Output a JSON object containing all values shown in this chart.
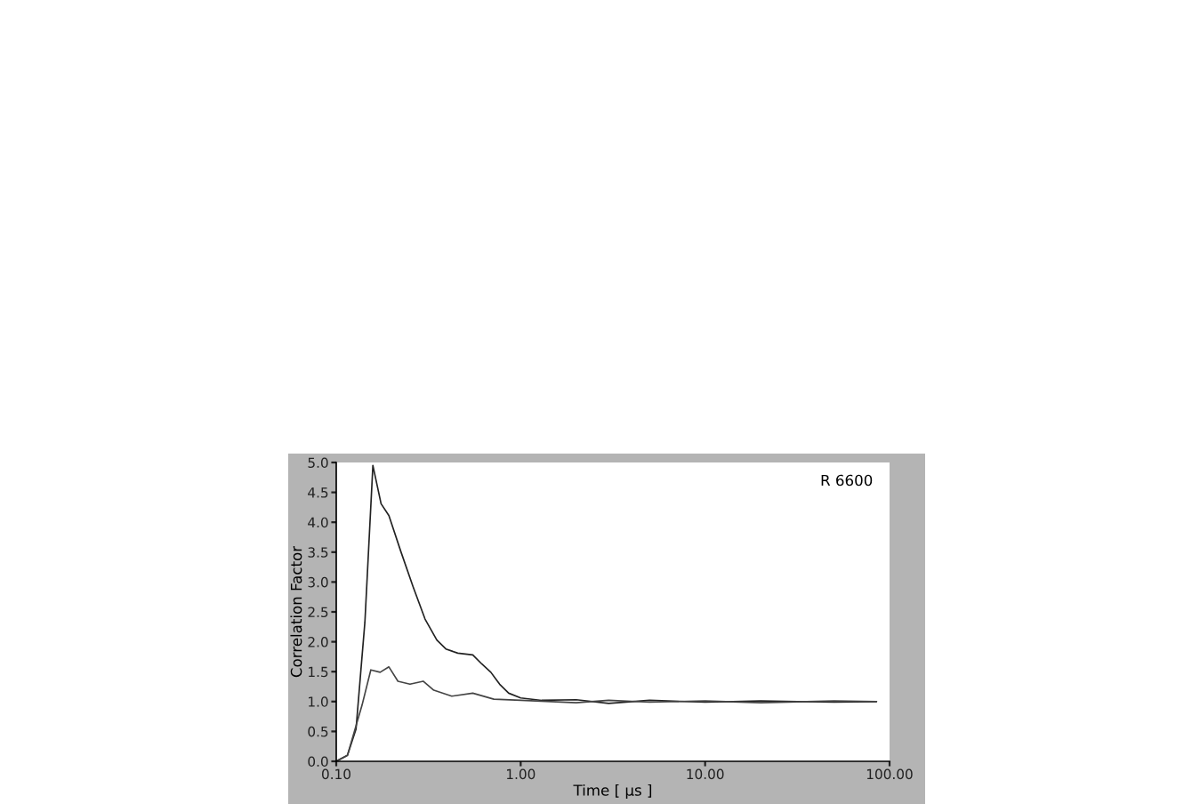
{
  "chart_data": {
    "type": "line",
    "xlabel": "Time [ µs ]",
    "ylabel": "Correlation Factor",
    "annotations": [
      "R 6600"
    ],
    "log": "x",
    "xlim": [
      0.1,
      100
    ],
    "xticks": [
      {
        "value": 0.1,
        "label": "0.10"
      },
      {
        "value": 1,
        "label": "1.00"
      },
      {
        "value": 10,
        "label": "10.00"
      },
      {
        "value": 100,
        "label": "100.00"
      }
    ],
    "ylim": [
      0,
      5
    ],
    "yticks": [
      {
        "value": 0,
        "label": "0.0"
      },
      0.5,
      {
        "value": 1,
        "label": "1.0"
      },
      1.5,
      {
        "value": 2,
        "label": "2.0"
      },
      2.5,
      {
        "value": 3,
        "label": "3.0"
      },
      3.5,
      {
        "value": 4,
        "label": "4.0"
      },
      4.5,
      {
        "value": 5,
        "label": "5.0"
      }
    ],
    "series": [
      {
        "color": "#222222",
        "x": [
          0.1,
          0.115,
          0.128,
          0.143,
          0.158,
          0.175,
          0.193,
          0.224,
          0.261,
          0.303,
          0.351,
          0.393,
          0.456,
          0.55,
          0.615,
          0.689,
          0.769,
          0.861,
          1.0,
          1.3,
          2,
          3,
          5,
          10,
          20,
          50,
          85
        ],
        "values": [
          0.0,
          0.1,
          0.54,
          2.33,
          4.95,
          4.31,
          4.11,
          3.51,
          2.92,
          2.38,
          2.03,
          1.88,
          1.81,
          1.78,
          1.63,
          1.49,
          1.29,
          1.14,
          1.06,
          1.02,
          1.03,
          0.97,
          1.02,
          0.99,
          1.01,
          0.99,
          1.0
        ]
      },
      {
        "color": "#444444",
        "x": [
          0.1,
          0.115,
          0.138,
          0.154,
          0.173,
          0.193,
          0.216,
          0.251,
          0.296,
          0.338,
          0.423,
          0.55,
          0.715,
          1.0,
          2,
          3,
          5,
          10,
          20,
          50,
          85
        ],
        "values": [
          0.0,
          0.1,
          0.94,
          1.53,
          1.49,
          1.58,
          1.34,
          1.29,
          1.34,
          1.19,
          1.09,
          1.14,
          1.04,
          1.02,
          0.98,
          1.02,
          0.99,
          1.01,
          0.98,
          1.01,
          1.0
        ]
      }
    ]
  }
}
